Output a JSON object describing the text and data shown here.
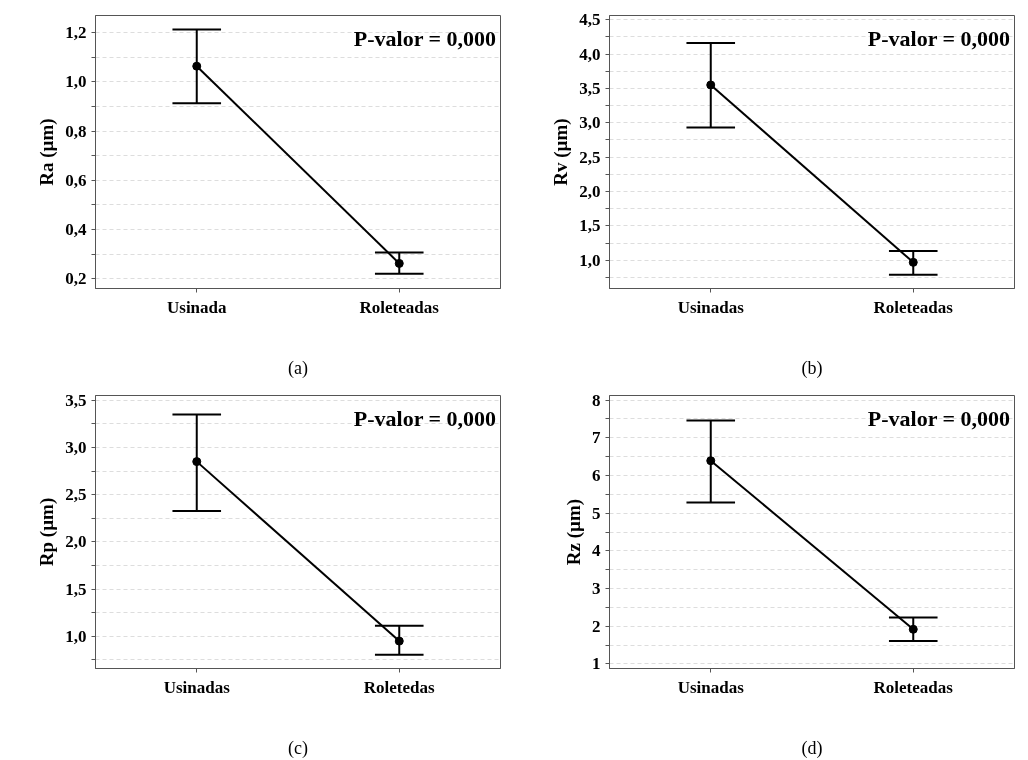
{
  "chart_data": [
    {
      "type": "line",
      "xlabel": "(a)",
      "ylabel": "Ra (µm)",
      "categories": [
        "Usinada",
        "Roleteadas"
      ],
      "values": [
        1.064,
        0.262
      ],
      "errors": [
        [
          0.913,
          1.213
        ],
        [
          0.22,
          0.306
        ]
      ],
      "color": "#000000",
      "marker": "circle",
      "line_style": "solid",
      "grid": "y",
      "ylim": [
        0.16,
        1.27
      ],
      "yticks": [
        {
          "value": 0.2,
          "label": "0,2"
        },
        {
          "value": 0.3,
          "label": null
        },
        {
          "value": 0.4,
          "label": "0,4"
        },
        {
          "value": 0.5,
          "label": null
        },
        {
          "value": 0.6,
          "label": "0,6"
        },
        {
          "value": 0.7,
          "label": null
        },
        {
          "value": 0.8,
          "label": "0,8"
        },
        {
          "value": 0.9,
          "label": null
        },
        {
          "value": 1.0,
          "label": "1,0"
        },
        {
          "value": 1.1,
          "label": null
        },
        {
          "value": 1.2,
          "label": "1,2"
        }
      ],
      "annotations": [
        "P-valor = 0,000"
      ]
    },
    {
      "type": "line",
      "xlabel": "(b)",
      "ylabel": "Rv (µm)",
      "categories": [
        "Usinadas",
        "Roleteadas"
      ],
      "values": [
        3.55,
        0.97
      ],
      "errors": [
        [
          2.93,
          4.16
        ],
        [
          0.79,
          1.136
        ]
      ],
      "color": "#000000",
      "marker": "circle",
      "line_style": "solid",
      "grid": "y",
      "ylim": [
        0.59,
        4.56
      ],
      "yticks": [
        {
          "value": 0.75,
          "label": null
        },
        {
          "value": 1.0,
          "label": "1,0"
        },
        {
          "value": 1.25,
          "label": null
        },
        {
          "value": 1.5,
          "label": "1,5"
        },
        {
          "value": 1.75,
          "label": null
        },
        {
          "value": 2.0,
          "label": "2,0"
        },
        {
          "value": 2.25,
          "label": null
        },
        {
          "value": 2.5,
          "label": "2,5"
        },
        {
          "value": 2.75,
          "label": null
        },
        {
          "value": 3.0,
          "label": "3,0"
        },
        {
          "value": 3.25,
          "label": null
        },
        {
          "value": 3.5,
          "label": "3,5"
        },
        {
          "value": 3.75,
          "label": null
        },
        {
          "value": 4.0,
          "label": "4,0"
        },
        {
          "value": 4.25,
          "label": null
        },
        {
          "value": 4.5,
          "label": "4,5"
        }
      ],
      "annotations": [
        "P-valor = 0,000"
      ]
    },
    {
      "type": "line",
      "xlabel": "(c)",
      "ylabel": "Rp (µm)",
      "categories": [
        "Usinadas",
        "Roletedas"
      ],
      "values": [
        2.85,
        0.95
      ],
      "errors": [
        [
          2.326,
          3.348
        ],
        [
          0.806,
          1.113
        ]
      ],
      "color": "#000000",
      "marker": "circle",
      "line_style": "solid",
      "grid": "y",
      "ylim": [
        0.66,
        3.55
      ],
      "yticks": [
        {
          "value": 0.75,
          "label": null
        },
        {
          "value": 1.0,
          "label": "1,0"
        },
        {
          "value": 1.25,
          "label": null
        },
        {
          "value": 1.5,
          "label": "1,5"
        },
        {
          "value": 1.75,
          "label": null
        },
        {
          "value": 2.0,
          "label": "2,0"
        },
        {
          "value": 2.25,
          "label": null
        },
        {
          "value": 2.5,
          "label": "2,5"
        },
        {
          "value": 2.75,
          "label": null
        },
        {
          "value": 3.0,
          "label": "3,0"
        },
        {
          "value": 3.25,
          "label": null
        },
        {
          "value": 3.5,
          "label": "3,5"
        }
      ],
      "annotations": [
        "P-valor = 0,000"
      ]
    },
    {
      "type": "line",
      "xlabel": "(d)",
      "ylabel": "Rz (µm)",
      "categories": [
        "Usinadas",
        "Roleteadas"
      ],
      "values": [
        6.39,
        1.92
      ],
      "errors": [
        [
          5.28,
          7.46
        ],
        [
          1.61,
          2.23
        ]
      ],
      "color": "#000000",
      "marker": "circle",
      "line_style": "solid",
      "grid": "y",
      "ylim": [
        0.88,
        8.12
      ],
      "yticks": [
        1,
        {
          "value": 1.5,
          "label": null
        },
        2,
        {
          "value": 2.5,
          "label": null
        },
        3,
        {
          "value": 3.5,
          "label": null
        },
        4,
        {
          "value": 4.5,
          "label": null
        },
        5,
        {
          "value": 5.5,
          "label": null
        },
        6,
        {
          "value": 6.5,
          "label": null
        },
        7,
        {
          "value": 7.5,
          "label": null
        },
        8
      ],
      "annotations": [
        "P-valor = 0,000"
      ]
    }
  ]
}
